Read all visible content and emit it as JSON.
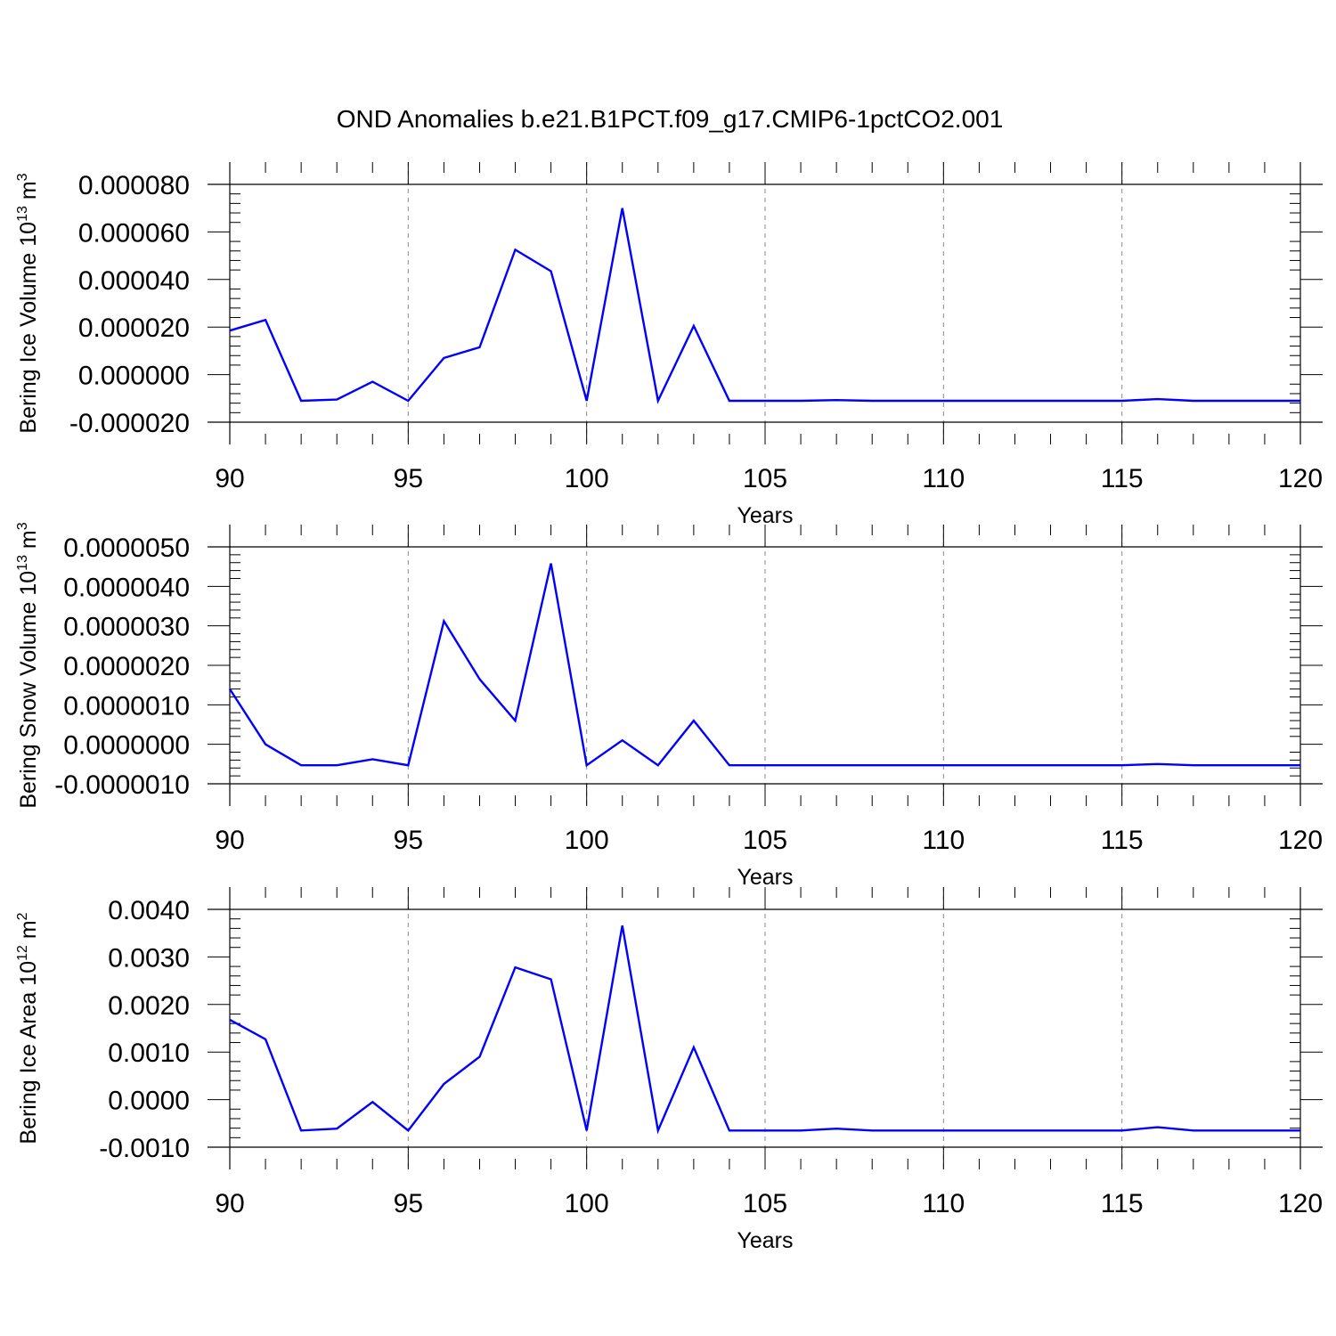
{
  "figure": {
    "title": "OND Anomalies b.e21.B1PCT.f09_g17.CMIP6-1pctCO2.001",
    "line_color": "#0000ff",
    "grid_color": "#888888"
  },
  "chart_data": [
    {
      "type": "line",
      "xlabel": "Years",
      "ylabel": {
        "main": "Bering Ice Volume 10",
        "sup": "13",
        "unit": " m",
        "unit_sup": "3"
      },
      "xlim": [
        90,
        120
      ],
      "ylim": [
        -2e-05,
        8e-05
      ],
      "x_ticks": [
        90,
        95,
        100,
        105,
        110,
        115,
        120
      ],
      "x_tick_labels": [
        "90",
        "95",
        "100",
        "105",
        "110",
        "115",
        "120"
      ],
      "y_ticks": [
        -2e-05,
        0,
        2e-05,
        4e-05,
        6e-05,
        8e-05
      ],
      "y_tick_labels": [
        "-0.000020",
        "0.000000",
        "0.000020",
        "0.000040",
        "0.000060",
        "0.000080"
      ],
      "grid_x": [
        95,
        100,
        105,
        110,
        115
      ],
      "series": [
        {
          "x": [
            90,
            91,
            92,
            93,
            94,
            95,
            96,
            97,
            98,
            99,
            100,
            101,
            102,
            103,
            104,
            105,
            106,
            107,
            108,
            109,
            110,
            111,
            112,
            113,
            114,
            115,
            116,
            117,
            118,
            119,
            120
          ],
          "y": [
            1.85e-05,
            2.3e-05,
            -1.1e-05,
            -1.05e-05,
            -3e-06,
            -1.1e-05,
            7e-06,
            1.15e-05,
            5.25e-05,
            4.35e-05,
            -1.1e-05,
            7e-05,
            -1.1e-05,
            2.05e-05,
            -1.1e-05,
            -1.1e-05,
            -1.1e-05,
            -1.07e-05,
            -1.1e-05,
            -1.1e-05,
            -1.1e-05,
            -1.1e-05,
            -1.1e-05,
            -1.1e-05,
            -1.1e-05,
            -1.1e-05,
            -1.03e-05,
            -1.1e-05,
            -1.1e-05,
            -1.1e-05,
            -1.1e-05
          ]
        }
      ]
    },
    {
      "type": "line",
      "xlabel": "Years",
      "ylabel": {
        "main": "Bering Snow Volume 10",
        "sup": "13",
        "unit": " m",
        "unit_sup": "3"
      },
      "xlim": [
        90,
        120
      ],
      "ylim": [
        -1e-06,
        5e-06
      ],
      "x_ticks": [
        90,
        95,
        100,
        105,
        110,
        115,
        120
      ],
      "x_tick_labels": [
        "90",
        "95",
        "100",
        "105",
        "110",
        "115",
        "120"
      ],
      "y_ticks": [
        -1e-06,
        0,
        1e-06,
        2e-06,
        3e-06,
        4e-06,
        5e-06
      ],
      "y_tick_labels": [
        "-0.0000010",
        "0.0000000",
        "0.0000010",
        "0.0000020",
        "0.0000030",
        "0.0000040",
        "0.0000050"
      ],
      "grid_x": [
        95,
        100,
        105,
        110,
        115
      ],
      "series": [
        {
          "x": [
            90,
            91,
            92,
            93,
            94,
            95,
            96,
            97,
            98,
            99,
            100,
            101,
            102,
            103,
            104,
            105,
            106,
            107,
            108,
            109,
            110,
            111,
            112,
            113,
            114,
            115,
            116,
            117,
            118,
            119,
            120
          ],
          "y": [
            1.4e-06,
            0.0,
            -5.3e-07,
            -5.3e-07,
            -3.8e-07,
            -5.3e-07,
            3.12e-06,
            1.65e-06,
            6e-07,
            4.58e-06,
            -5.3e-07,
            1e-07,
            -5.3e-07,
            6e-07,
            -5.3e-07,
            -5.3e-07,
            -5.3e-07,
            -5.3e-07,
            -5.3e-07,
            -5.3e-07,
            -5.3e-07,
            -5.3e-07,
            -5.3e-07,
            -5.3e-07,
            -5.3e-07,
            -5.3e-07,
            -5e-07,
            -5.3e-07,
            -5.3e-07,
            -5.3e-07,
            -5.3e-07
          ]
        }
      ]
    },
    {
      "type": "line",
      "xlabel": "Years",
      "ylabel": {
        "main": "Bering Ice Area 10",
        "sup": "12",
        "unit": " m",
        "unit_sup": "2"
      },
      "xlim": [
        90,
        120
      ],
      "ylim": [
        -0.001,
        0.004
      ],
      "x_ticks": [
        90,
        95,
        100,
        105,
        110,
        115,
        120
      ],
      "x_tick_labels": [
        "90",
        "95",
        "100",
        "105",
        "110",
        "115",
        "120"
      ],
      "y_ticks": [
        -0.001,
        0,
        0.001,
        0.002,
        0.003,
        0.004
      ],
      "y_tick_labels": [
        "-0.0010",
        "0.0000",
        "0.0010",
        "0.0020",
        "0.0030",
        "0.0040"
      ],
      "grid_x": [
        95,
        100,
        105,
        110,
        115
      ],
      "series": [
        {
          "x": [
            90,
            91,
            92,
            93,
            94,
            95,
            96,
            97,
            98,
            99,
            100,
            101,
            102,
            103,
            104,
            105,
            106,
            107,
            108,
            109,
            110,
            111,
            112,
            113,
            114,
            115,
            116,
            117,
            118,
            119,
            120
          ],
          "y": [
            0.00168,
            0.00127,
            -0.00065,
            -0.00061,
            -5e-05,
            -0.00065,
            0.00033,
            0.0009,
            0.00278,
            0.00253,
            -0.00065,
            0.00366,
            -0.00065,
            0.0011,
            -0.00065,
            -0.00065,
            -0.00065,
            -0.00061,
            -0.00065,
            -0.00065,
            -0.00065,
            -0.00065,
            -0.00065,
            -0.00065,
            -0.00065,
            -0.00065,
            -0.00058,
            -0.00065,
            -0.00065,
            -0.00065,
            -0.00065
          ]
        }
      ]
    }
  ]
}
